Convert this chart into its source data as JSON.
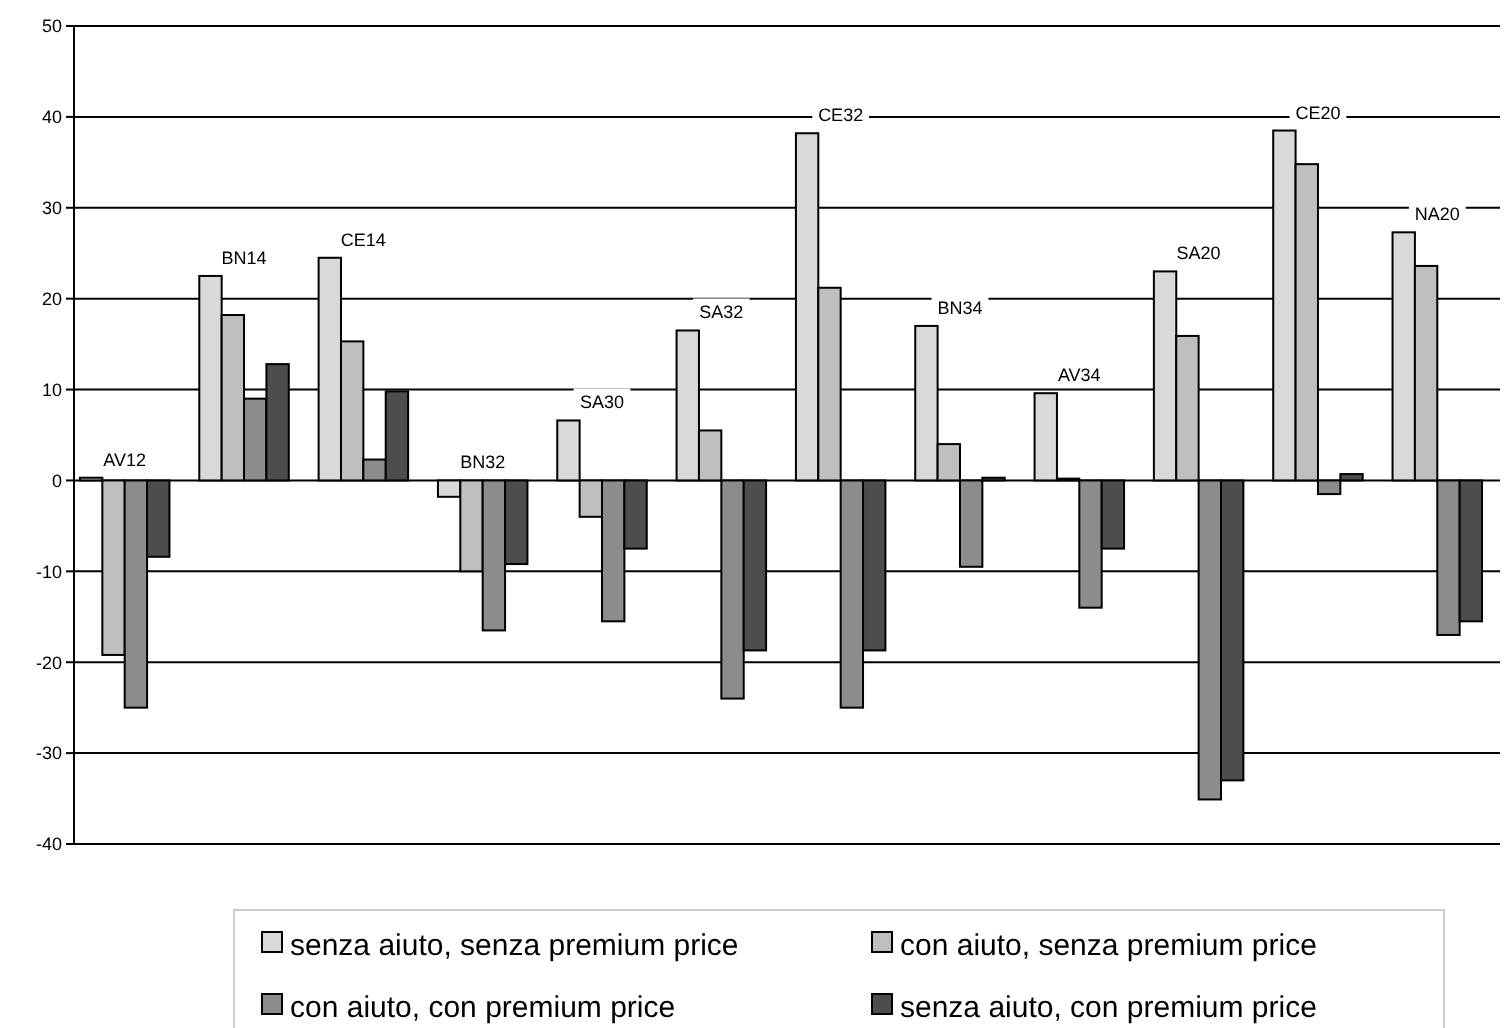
{
  "chart_data": {
    "type": "bar",
    "categories": [
      "AV12",
      "BN14",
      "CE14",
      "BN32",
      "SA30",
      "SA32",
      "CE32",
      "BN34",
      "AV34",
      "SA20",
      "CE20",
      "NA20"
    ],
    "series": [
      {
        "name": "senza aiuto, senza premium price",
        "color": "#d9d9d9",
        "values": [
          0.3,
          22.5,
          24.5,
          -1.8,
          6.6,
          16.5,
          38.2,
          17,
          9.6,
          23,
          38.5,
          27.3
        ]
      },
      {
        "name": "con aiuto, senza premium price",
        "color": "#bfbfbf",
        "values": [
          -19.2,
          18.2,
          15.3,
          -10,
          -4,
          5.5,
          21.2,
          4,
          0.2,
          15.9,
          34.8,
          23.6
        ]
      },
      {
        "name": "con aiuto, con premium price",
        "color": "#8c8c8c",
        "values": [
          -25,
          9,
          2.3,
          -16.5,
          -15.5,
          -24,
          -25,
          -9.5,
          -14,
          -35.1,
          -1.5,
          -17
        ]
      },
      {
        "name": "senza aiuto, con premium price",
        "color": "#4d4d4d",
        "values": [
          -8.4,
          12.8,
          9.8,
          -9.2,
          -7.5,
          -18.7,
          -18.7,
          0.3,
          -7.5,
          -33,
          0.7,
          -15.5
        ]
      }
    ],
    "ylim": [
      -40,
      50
    ],
    "yticks": [
      -40,
      -30,
      -20,
      -10,
      0,
      10,
      20,
      30,
      40,
      50
    ],
    "grid": "y",
    "legend": "bottom"
  }
}
